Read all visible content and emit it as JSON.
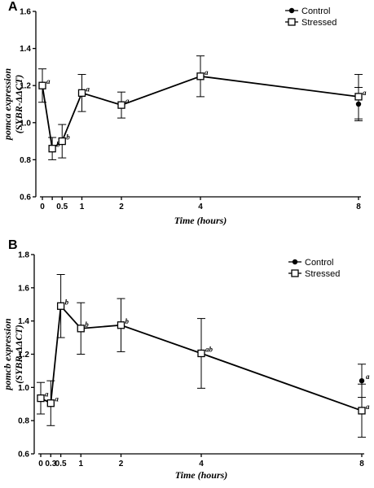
{
  "chart_data": [
    {
      "panel": "A",
      "type": "line",
      "xlabel": "Time (hours)",
      "ylabel_line1": "pomca expression",
      "ylabel_line2": "(SYBR-ΔΔCT)",
      "xlim": [
        0,
        8
      ],
      "ylim": [
        0.6,
        1.6
      ],
      "xticks": [
        0,
        0.25,
        0.5,
        1,
        2,
        4,
        8
      ],
      "xtick_labels": [
        "0",
        "",
        "0.5",
        "1",
        "2",
        "4",
        "8"
      ],
      "yticks": [
        0.6,
        0.8,
        1.0,
        1.2,
        1.4,
        1.6
      ],
      "ytick_labels": [
        "0.6",
        "0.8",
        "1.0",
        "1.2",
        "1.4",
        "1.6"
      ],
      "legend": [
        "Control",
        "Stressed"
      ],
      "legend_position": "top-right",
      "series": [
        {
          "name": "Control",
          "marker": "filled-circle",
          "x": [
            8
          ],
          "y": [
            1.1
          ],
          "error": [
            0.09
          ],
          "sig": [
            ""
          ]
        },
        {
          "name": "Stressed",
          "marker": "open-square",
          "x": [
            0,
            0.25,
            0.5,
            1,
            2,
            4,
            8
          ],
          "y": [
            1.2,
            0.86,
            0.9,
            1.16,
            1.095,
            1.25,
            1.14
          ],
          "error": [
            0.09,
            0.06,
            0.09,
            0.1,
            0.07,
            0.11,
            0.12
          ],
          "sig": [
            "a",
            "b",
            "b",
            "a",
            "a",
            "a",
            "a"
          ]
        }
      ]
    },
    {
      "panel": "B",
      "type": "line",
      "xlabel": "Time (hours)",
      "ylabel_line1": "pomcb expression",
      "ylabel_line2": "(SYBR-ΔΔCT)",
      "xlim": [
        0,
        8
      ],
      "ylim": [
        0.6,
        1.8
      ],
      "xticks": [
        0,
        0.25,
        0.5,
        1,
        2,
        4,
        8
      ],
      "xtick_labels": [
        "0",
        "0.3",
        "0.5",
        "1",
        "2",
        "4",
        "8"
      ],
      "yticks": [
        0.6,
        0.8,
        1.0,
        1.2,
        1.4,
        1.6,
        1.8
      ],
      "ytick_labels": [
        "0.6",
        "0.8",
        "1.0",
        "1.2",
        "1.4",
        "1.6",
        "1.8"
      ],
      "legend": [
        "Control",
        "Stressed"
      ],
      "legend_position": "top-right",
      "series": [
        {
          "name": "Control",
          "marker": "filled-circle",
          "x": [
            8
          ],
          "y": [
            1.04
          ],
          "error": [
            0.1
          ],
          "sig": [
            "a"
          ]
        },
        {
          "name": "Stressed",
          "marker": "open-square",
          "x": [
            0,
            0.25,
            0.5,
            1,
            2,
            4,
            8
          ],
          "y": [
            0.935,
            0.905,
            1.49,
            1.355,
            1.375,
            1.205,
            0.86
          ],
          "error": [
            0.095,
            0.135,
            0.19,
            0.155,
            0.16,
            0.21,
            0.16
          ],
          "sig": [
            "a",
            "a",
            "b",
            "b",
            "b",
            "ab",
            "a"
          ]
        }
      ]
    }
  ]
}
